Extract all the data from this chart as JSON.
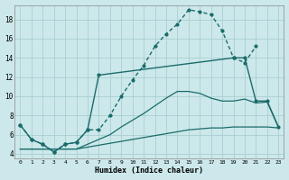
{
  "xlabel": "Humidex (Indice chaleur)",
  "bg_color": "#cce8ea",
  "grid_color": "#aacfd2",
  "line_color": "#1a6b6b",
  "xlim": [
    -0.5,
    23.5
  ],
  "ylim": [
    3.5,
    19.5
  ],
  "xticks": [
    0,
    1,
    2,
    3,
    4,
    5,
    6,
    7,
    8,
    9,
    10,
    11,
    12,
    13,
    14,
    15,
    16,
    17,
    18,
    19,
    20,
    21,
    22,
    23
  ],
  "yticks": [
    4,
    6,
    8,
    10,
    12,
    14,
    16,
    18
  ],
  "series1_x": [
    0,
    1,
    2,
    3,
    4,
    5,
    6,
    7,
    8,
    9,
    10,
    11,
    12,
    13,
    14,
    15,
    16,
    17,
    18,
    19,
    20,
    21,
    22,
    23
  ],
  "series1_y": [
    4.5,
    4.5,
    4.5,
    4.5,
    4.5,
    4.5,
    4.7,
    4.9,
    5.1,
    5.3,
    5.5,
    5.7,
    5.9,
    6.1,
    6.3,
    6.5,
    6.6,
    6.7,
    6.7,
    6.8,
    6.8,
    6.8,
    6.8,
    6.7
  ],
  "series2_x": [
    0,
    1,
    2,
    3,
    4,
    5,
    6,
    7,
    8,
    9,
    10,
    11,
    12,
    13,
    14,
    15,
    16,
    17,
    18,
    19,
    20,
    21,
    22,
    23
  ],
  "series2_y": [
    4.5,
    4.5,
    4.5,
    4.5,
    4.5,
    4.5,
    5.0,
    5.5,
    6.0,
    6.8,
    7.5,
    8.2,
    9.0,
    9.8,
    10.5,
    10.5,
    10.3,
    9.8,
    9.5,
    9.5,
    9.7,
    9.3,
    9.4,
    6.8
  ],
  "series3_x": [
    0,
    1,
    2,
    3,
    4,
    5,
    6,
    7,
    8,
    9,
    10,
    11,
    12,
    13,
    14,
    15,
    16,
    17,
    18,
    19,
    20,
    21
  ],
  "series3_y": [
    7.0,
    5.5,
    5.0,
    4.2,
    5.0,
    5.2,
    6.5,
    6.5,
    8.0,
    10.0,
    11.7,
    13.2,
    15.2,
    16.5,
    17.5,
    19.0,
    18.8,
    18.5,
    16.8,
    14.0,
    13.5,
    15.2
  ],
  "series4_x": [
    0,
    1,
    2,
    3,
    4,
    5,
    6,
    7,
    19,
    20,
    21,
    22,
    23
  ],
  "series4_y": [
    7.0,
    5.5,
    5.0,
    4.2,
    5.0,
    5.2,
    6.5,
    12.2,
    14.0,
    14.0,
    9.5,
    9.5,
    6.8
  ]
}
